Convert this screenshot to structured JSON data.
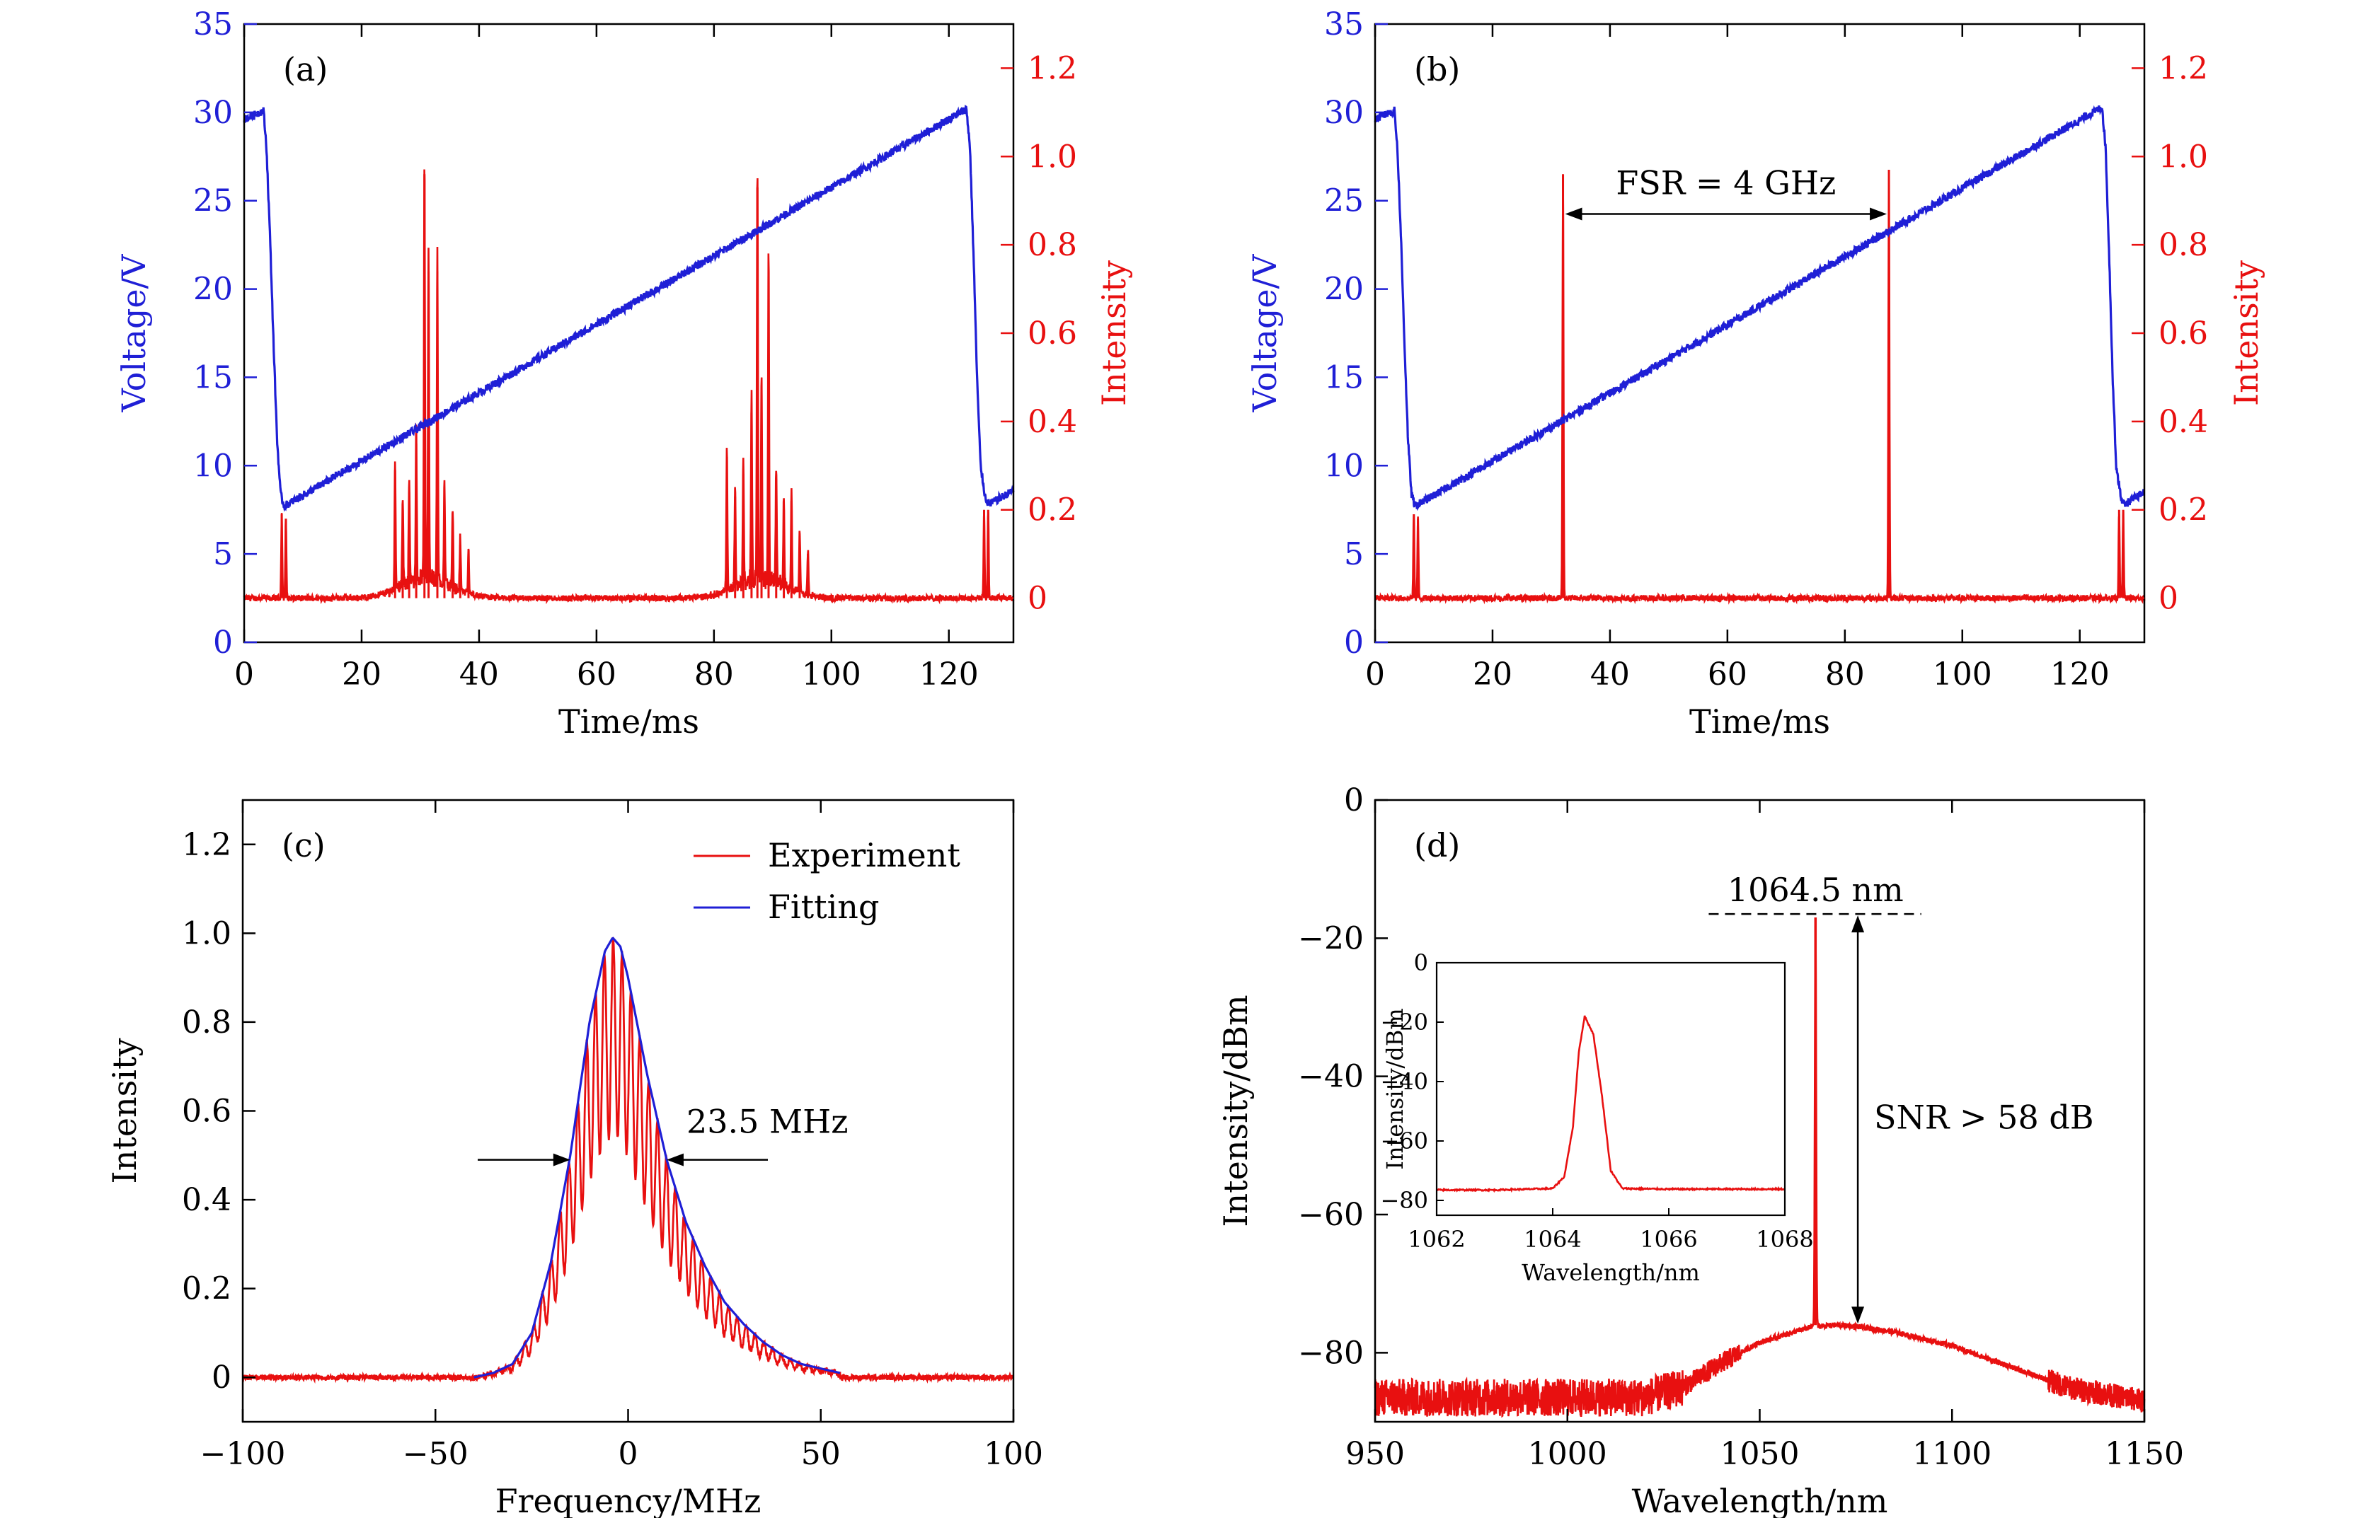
{
  "colors": {
    "blue": "#1f1fd6",
    "red": "#e81010",
    "black": "#000000"
  },
  "chart_data": [
    {
      "id": "a",
      "type": "line",
      "panel_label": "(a)",
      "xlabel": "Time/ms",
      "ylabel_left": "Voltage/V",
      "ylabel_right": "Intensity",
      "xlim": [
        0,
        131
      ],
      "ylim_left": [
        0,
        35
      ],
      "ylim_right": [
        -0.1,
        1.3
      ],
      "x_ticks": [
        0,
        20,
        40,
        60,
        80,
        100,
        120
      ],
      "x_tick_labels": [
        "0",
        "20",
        "40",
        "60",
        "80",
        "100",
        "120"
      ],
      "yl_ticks": [
        0,
        5,
        10,
        15,
        20,
        25,
        30,
        35
      ],
      "yl_tick_labels": [
        "0",
        "5",
        "10",
        "15",
        "20",
        "25",
        "30",
        "35"
      ],
      "yr_ticks": [
        0,
        0.2,
        0.4,
        0.6,
        0.8,
        1.0,
        1.2
      ],
      "yr_tick_labels": [
        "0",
        "0.2",
        "0.4",
        "0.6",
        "0.8",
        "1.0",
        "1.2"
      ],
      "series": [
        {
          "name": "Voltage",
          "axis": "left",
          "color": "blue",
          "x": [
            0,
            3.3,
            3.8,
            4.4,
            5.0,
            5.6,
            6.2,
            6.8,
            123.0,
            123.6,
            124.2,
            124.8,
            125.4,
            126.2,
            126.8,
            131
          ],
          "y": [
            29.6,
            30.1,
            28.0,
            23.0,
            17.0,
            11.5,
            8.4,
            7.7,
            30.2,
            28.0,
            22.0,
            15.0,
            10.0,
            8.2,
            7.8,
            8.6
          ]
        },
        {
          "name": "Intensity",
          "axis": "right",
          "color": "red",
          "baseline": 0,
          "peaks": [
            {
              "x": 6.4,
              "h": 0.19
            },
            {
              "x": 7.1,
              "h": 0.18
            },
            {
              "x": 25.7,
              "h": 0.29
            },
            {
              "x": 27.0,
              "h": 0.2
            },
            {
              "x": 28.1,
              "h": 0.24
            },
            {
              "x": 29.3,
              "h": 0.35
            },
            {
              "x": 30.7,
              "h": 0.96
            },
            {
              "x": 31.4,
              "h": 0.74
            },
            {
              "x": 32.9,
              "h": 0.74
            },
            {
              "x": 34.1,
              "h": 0.23
            },
            {
              "x": 35.5,
              "h": 0.18
            },
            {
              "x": 36.8,
              "h": 0.12
            },
            {
              "x": 38.2,
              "h": 0.1
            },
            {
              "x": 82.2,
              "h": 0.32
            },
            {
              "x": 83.6,
              "h": 0.23
            },
            {
              "x": 85.0,
              "h": 0.28
            },
            {
              "x": 86.4,
              "h": 0.42
            },
            {
              "x": 87.4,
              "h": 0.93
            },
            {
              "x": 88.1,
              "h": 0.46
            },
            {
              "x": 89.3,
              "h": 0.73
            },
            {
              "x": 90.6,
              "h": 0.27
            },
            {
              "x": 91.9,
              "h": 0.2
            },
            {
              "x": 93.2,
              "h": 0.22
            },
            {
              "x": 94.6,
              "h": 0.14
            },
            {
              "x": 96.0,
              "h": 0.1
            },
            {
              "x": 126.0,
              "h": 0.2
            },
            {
              "x": 126.7,
              "h": 0.2
            }
          ],
          "humps": [
            {
              "x": 31,
              "h": 0.045,
              "w": 6
            },
            {
              "x": 88,
              "h": 0.045,
              "w": 6
            }
          ]
        }
      ]
    },
    {
      "id": "b",
      "type": "line",
      "panel_label": "(b)",
      "xlabel": "Time/ms",
      "ylabel_left": "Voltage/V",
      "ylabel_right": "Intensity",
      "xlim": [
        0,
        131
      ],
      "ylim_left": [
        0,
        35
      ],
      "ylim_right": [
        -0.1,
        1.3
      ],
      "x_ticks": [
        0,
        20,
        40,
        60,
        80,
        100,
        120
      ],
      "x_tick_labels": [
        "0",
        "20",
        "40",
        "60",
        "80",
        "100",
        "120"
      ],
      "yl_ticks": [
        0,
        5,
        10,
        15,
        20,
        25,
        30,
        35
      ],
      "yl_tick_labels": [
        "0",
        "5",
        "10",
        "15",
        "20",
        "25",
        "30",
        "35"
      ],
      "yr_ticks": [
        0,
        0.2,
        0.4,
        0.6,
        0.8,
        1.0,
        1.2
      ],
      "yr_tick_labels": [
        "0",
        "0.2",
        "0.4",
        "0.6",
        "0.8",
        "1.0",
        "1.2"
      ],
      "annotation": {
        "text": "FSR = 4 GHz",
        "x1": 32,
        "x2": 87.5,
        "y_right": 0.87
      },
      "series": [
        {
          "name": "Voltage",
          "axis": "left",
          "color": "blue",
          "x": [
            0,
            3.3,
            3.8,
            4.4,
            5.0,
            5.6,
            6.2,
            6.8,
            123.8,
            124.4,
            125.0,
            125.6,
            126.2,
            127.0,
            127.6,
            131
          ],
          "y": [
            29.6,
            30.1,
            28.0,
            23.0,
            17.0,
            11.5,
            8.4,
            7.7,
            30.3,
            28.0,
            22.0,
            15.0,
            10.0,
            8.2,
            7.8,
            8.5
          ]
        },
        {
          "name": "Intensity",
          "axis": "right",
          "color": "red",
          "baseline": 0,
          "peaks": [
            {
              "x": 6.6,
              "h": 0.19
            },
            {
              "x": 7.3,
              "h": 0.18
            },
            {
              "x": 32.0,
              "h": 0.96
            },
            {
              "x": 87.5,
              "h": 0.97
            },
            {
              "x": 126.7,
              "h": 0.2
            },
            {
              "x": 127.4,
              "h": 0.2
            }
          ],
          "humps": []
        }
      ]
    },
    {
      "id": "c",
      "type": "line",
      "panel_label": "(c)",
      "xlabel": "Frequency/MHz",
      "ylabel": "Intensity",
      "xlim": [
        -100,
        100
      ],
      "ylim": [
        -0.1,
        1.3
      ],
      "x_ticks": [
        -100,
        -50,
        0,
        50,
        100
      ],
      "x_tick_labels": [
        "−100",
        "−50",
        "0",
        "50",
        "100"
      ],
      "y_ticks": [
        0,
        0.2,
        0.4,
        0.6,
        0.8,
        1.0,
        1.2
      ],
      "y_tick_labels": [
        "0",
        "0.2",
        "0.4",
        "0.6",
        "0.8",
        "1.0",
        "1.2"
      ],
      "legend": {
        "placement": "top-right",
        "entries": [
          "Experiment",
          "Fitting"
        ]
      },
      "annotation": {
        "text": "23.5 MHz",
        "left_x": -15,
        "right_x": 10,
        "y": 0.49
      },
      "series": [
        {
          "name": "Experiment",
          "color": "red",
          "fringe_period_MHz": 2.3,
          "fringe_modulation": 0.45
        },
        {
          "name": "Fitting",
          "color": "blue",
          "x": [
            -40,
            -35,
            -30,
            -25,
            -20,
            -15,
            -10,
            -6,
            -4,
            -2,
            0,
            5,
            10,
            15,
            20,
            25,
            30,
            35,
            40,
            45,
            50,
            55
          ],
          "y": [
            0.0,
            0.01,
            0.03,
            0.1,
            0.26,
            0.5,
            0.8,
            0.96,
            0.99,
            0.97,
            0.9,
            0.68,
            0.49,
            0.35,
            0.25,
            0.17,
            0.12,
            0.08,
            0.05,
            0.03,
            0.02,
            0.01
          ]
        }
      ]
    },
    {
      "id": "d",
      "type": "line",
      "panel_label": "(d)",
      "xlabel": "Wavelength/nm",
      "ylabel": "Intensity/dBm",
      "xlim": [
        950,
        1150
      ],
      "ylim": [
        -90,
        0
      ],
      "x_ticks": [
        950,
        1000,
        1050,
        1100,
        1150
      ],
      "x_tick_labels": [
        "950",
        "1000",
        "1050",
        "1100",
        "1150"
      ],
      "y_ticks": [
        0,
        -20,
        -40,
        -60,
        -80
      ],
      "y_tick_labels": [
        "0",
        "−20",
        "−40",
        "−60",
        "−80"
      ],
      "peak_label": "1064.5 nm",
      "snr_label": "SNR > 58 dB",
      "series": [
        {
          "name": "Spectrum",
          "color": "red",
          "peak_x": 1064.5,
          "peak_y": -17,
          "x": [
            950,
            1000,
            1020,
            1030,
            1040,
            1050,
            1060,
            1064,
            1070,
            1075,
            1085,
            1100,
            1115,
            1130,
            1140,
            1150
          ],
          "y": [
            -86.5,
            -86.5,
            -86.5,
            -85.0,
            -81.5,
            -78.5,
            -76.8,
            -76.2,
            -76.0,
            -76.2,
            -77.0,
            -79.0,
            -82.0,
            -85.0,
            -86.0,
            -87.0
          ]
        }
      ],
      "inset": {
        "xlabel": "Wavelength/nm",
        "ylabel": "Intensity/dBm",
        "xlim": [
          1062,
          1068
        ],
        "ylim": [
          -85,
          0
        ],
        "x_ticks": [
          1062,
          1064,
          1066,
          1068
        ],
        "x_tick_labels": [
          "1062",
          "1064",
          "1066",
          "1068"
        ],
        "y_ticks": [
          0,
          -20,
          -40,
          -60,
          -80
        ],
        "y_tick_labels": [
          "0",
          "−20",
          "−40",
          "−60",
          "−80"
        ],
        "series": [
          {
            "name": "Zoomed spectrum",
            "color": "red",
            "x": [
              1062,
              1063,
              1064,
              1064.2,
              1064.35,
              1064.45,
              1064.55,
              1064.7,
              1064.85,
              1065.0,
              1065.2,
              1066,
              1068
            ],
            "y": [
              -76.5,
              -76.5,
              -76.0,
              -72,
              -55,
              -30,
              -18,
              -24,
              -45,
              -70,
              -76,
              -76.2,
              -76.2
            ]
          }
        ]
      }
    }
  ]
}
